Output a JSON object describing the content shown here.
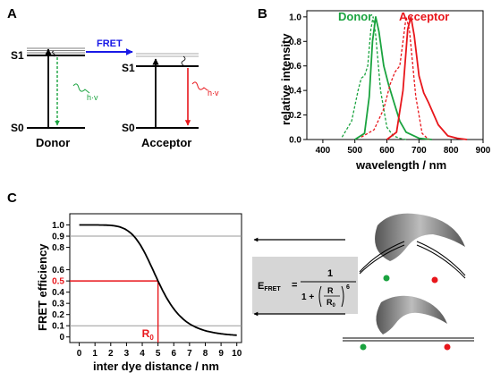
{
  "panels": {
    "a": {
      "letter": "A",
      "fret_label": "FRET",
      "donor": {
        "s1": "S1",
        "s0": "S0",
        "name": "Donor",
        "emission": "h·v"
      },
      "acceptor": {
        "s1": "S1",
        "s0": "S0",
        "name": "Acceptor",
        "emission": "h·v"
      }
    },
    "b": {
      "letter": "B",
      "donor_label": "Donor",
      "acceptor_label": "Acceptor"
    },
    "c": {
      "letter": "C",
      "formula": {
        "lhs": "E",
        "lhs_sub": "FRET",
        "equals": "=",
        "numerator": "1",
        "one_plus": "1 +",
        "r": "R",
        "r0": "R",
        "r0_sub": "0",
        "exponent": "6"
      },
      "r0_marker": "R",
      "r0_marker_sub": "0",
      "half_label": "0.5"
    }
  },
  "colors": {
    "donor": "#1aa33f",
    "acceptor": "#e8161b",
    "fret_arrow": "#1a1ae6",
    "grid": "#999999",
    "formula_bg": "#d6d6d6"
  },
  "chart_data": [
    {
      "type": "line",
      "panel": "B",
      "xlabel": "wavelength / nm",
      "ylabel": "relative intensity",
      "xlim": [
        350,
        900
      ],
      "ylim": [
        0,
        1.05
      ],
      "x_ticks": [
        "400",
        "500",
        "600",
        "700",
        "800",
        "900"
      ],
      "y_ticks": [
        "0.0",
        "0.2",
        "0.4",
        "0.6",
        "0.8",
        "1.0"
      ],
      "series": [
        {
          "name": "Donor",
          "style": "dashed",
          "x": [
            460,
            490,
            510,
            520,
            530,
            540,
            550,
            557,
            565,
            580,
            600,
            620,
            640,
            660
          ],
          "y": [
            0.02,
            0.15,
            0.4,
            0.5,
            0.52,
            0.6,
            0.9,
            1.0,
            0.85,
            0.4,
            0.1,
            0.03,
            0.01,
            0.0
          ]
        },
        {
          "name": "Donor",
          "style": "solid",
          "x": [
            500,
            530,
            545,
            555,
            565,
            575,
            590,
            605,
            620,
            640,
            660,
            700,
            740
          ],
          "y": [
            0.0,
            0.05,
            0.35,
            0.8,
            1.0,
            0.88,
            0.6,
            0.45,
            0.32,
            0.15,
            0.06,
            0.01,
            0.0
          ]
        },
        {
          "name": "Acceptor",
          "style": "dashed",
          "x": [
            520,
            560,
            590,
            610,
            625,
            640,
            650,
            660,
            670,
            690,
            710,
            730
          ],
          "y": [
            0.02,
            0.08,
            0.25,
            0.45,
            0.55,
            0.6,
            0.8,
            1.0,
            0.9,
            0.35,
            0.05,
            0.0
          ]
        },
        {
          "name": "Acceptor",
          "style": "solid",
          "x": [
            600,
            630,
            650,
            665,
            675,
            685,
            700,
            715,
            730,
            760,
            790,
            820,
            850
          ],
          "y": [
            0.0,
            0.06,
            0.4,
            0.9,
            1.0,
            0.85,
            0.52,
            0.38,
            0.3,
            0.12,
            0.03,
            0.01,
            0.0
          ]
        }
      ]
    },
    {
      "type": "line",
      "panel": "C",
      "xlabel": "inter dye distance / nm",
      "ylabel": "FRET efficiency",
      "xlim": [
        -0.6,
        10.3
      ],
      "ylim": [
        -0.05,
        1.1
      ],
      "x_ticks": [
        "0",
        "1",
        "2",
        "3",
        "4",
        "5",
        "6",
        "7",
        "8",
        "9",
        "10"
      ],
      "y_ticks": [
        "0",
        "0.1",
        "0.2",
        "0.3",
        "0.4",
        "0.5",
        "0.6",
        "0.8",
        "0.9",
        "1.0"
      ],
      "r0": 5,
      "horizontal_lines": [
        0.9,
        0.1
      ],
      "series": [
        {
          "name": "",
          "formula": "1/(1+(R/5)^6)",
          "x_from": 0,
          "x_to": 10
        }
      ]
    }
  ]
}
